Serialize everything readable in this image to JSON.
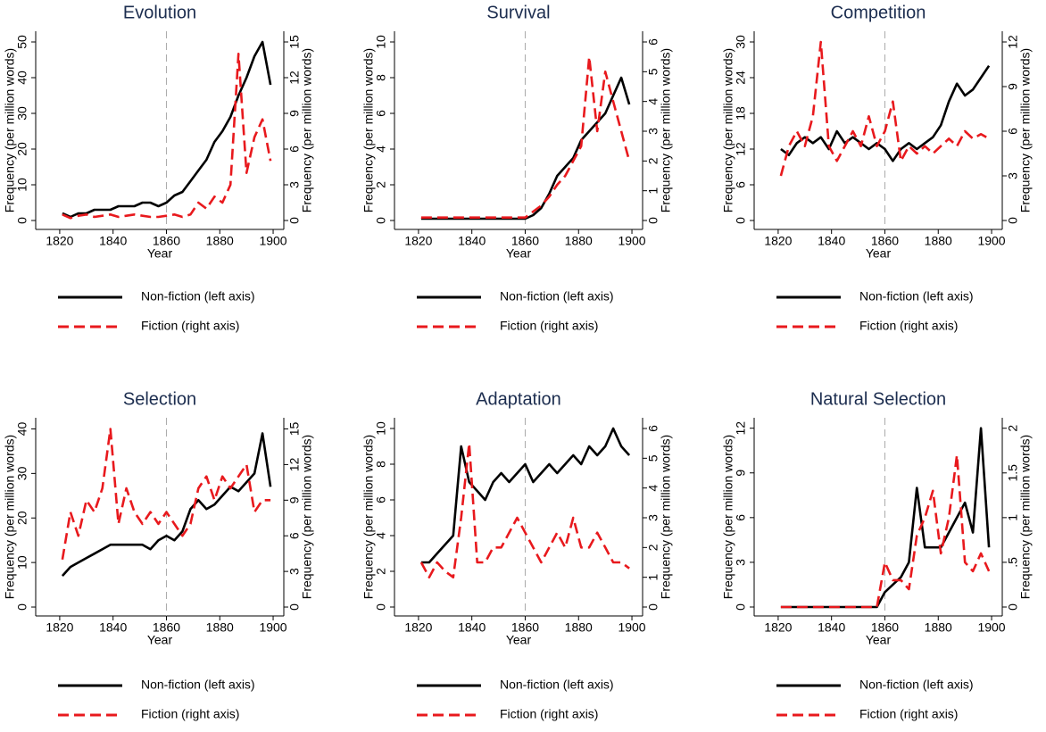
{
  "chart_data": [
    {
      "type": "line",
      "title": "Evolution",
      "xlabel": "Year",
      "ylabel": "Frequency (per million words)",
      "y2label": "Frequency (per million words)",
      "vline": 1860,
      "x": [
        1821,
        1824,
        1827,
        1830,
        1833,
        1836,
        1839,
        1842,
        1845,
        1848,
        1851,
        1854,
        1857,
        1860,
        1863,
        1866,
        1869,
        1872,
        1875,
        1878,
        1881,
        1884,
        1887,
        1890,
        1893,
        1896,
        1899
      ],
      "xlim": [
        1811,
        1904
      ],
      "xticks": [
        1820,
        1840,
        1860,
        1880,
        1900
      ],
      "ylim": [
        -2.5,
        53
      ],
      "yticks": [
        0,
        10,
        20,
        30,
        40,
        50
      ],
      "y2lim": [
        -0.75,
        15.9
      ],
      "y2ticks": [
        0,
        3,
        6,
        9,
        12,
        15
      ],
      "series": [
        {
          "name": "Non-fiction (left axis)",
          "color": "#000000",
          "axis": "y",
          "values": [
            2,
            1,
            2,
            2,
            3,
            3,
            3,
            4,
            4,
            4,
            5,
            5,
            4,
            5,
            7,
            8,
            11,
            14,
            17,
            22,
            25,
            29,
            35,
            40,
            46,
            50,
            38
          ]
        },
        {
          "name": "Fiction (right axis)",
          "color": "#e8191d",
          "axis": "y2",
          "values": [
            0.5,
            0.2,
            0.4,
            0.5,
            0.3,
            0.4,
            0.5,
            0.3,
            0.4,
            0.5,
            0.4,
            0.3,
            0.3,
            0.4,
            0.5,
            0.3,
            0.5,
            1.5,
            1,
            2,
            1.5,
            3,
            14,
            4,
            7,
            8.5,
            5
          ]
        }
      ]
    },
    {
      "type": "line",
      "title": "Survival",
      "xlabel": "Year",
      "ylabel": "Frequency (per million words)",
      "y2label": "Frequency (per million words)",
      "vline": 1860,
      "x": [
        1821,
        1824,
        1827,
        1830,
        1833,
        1836,
        1839,
        1842,
        1845,
        1848,
        1851,
        1854,
        1857,
        1860,
        1863,
        1866,
        1869,
        1872,
        1875,
        1878,
        1881,
        1884,
        1887,
        1890,
        1893,
        1896,
        1899
      ],
      "xlim": [
        1811,
        1904
      ],
      "xticks": [
        1820,
        1840,
        1860,
        1880,
        1900
      ],
      "ylim": [
        -0.5,
        10.6
      ],
      "yticks": [
        0,
        2,
        4,
        6,
        8,
        10
      ],
      "y2lim": [
        -0.3,
        6.36
      ],
      "y2ticks": [
        0,
        1,
        2,
        3,
        4,
        5,
        6
      ],
      "series": [
        {
          "name": "Non-fiction (left axis)",
          "color": "#000000",
          "axis": "y",
          "values": [
            0.1,
            0.1,
            0.1,
            0.1,
            0.1,
            0.1,
            0.1,
            0.1,
            0.1,
            0.1,
            0.1,
            0.1,
            0.1,
            0.1,
            0.3,
            0.7,
            1.5,
            2.5,
            3,
            3.5,
            4.5,
            5,
            5.5,
            6,
            7,
            8,
            6.5
          ]
        },
        {
          "name": "Fiction (right axis)",
          "color": "#e8191d",
          "axis": "y2",
          "values": [
            0.1,
            0.1,
            0.1,
            0.1,
            0.1,
            0.1,
            0.1,
            0.1,
            0.1,
            0.1,
            0.1,
            0.1,
            0.1,
            0.1,
            0.3,
            0.5,
            0.8,
            1.2,
            1.5,
            2,
            2.5,
            5.5,
            3,
            5,
            4,
            3,
            2
          ]
        }
      ]
    },
    {
      "type": "line",
      "title": "Competition",
      "xlabel": "Year",
      "ylabel": "Frequency (per million words)",
      "y2label": "Frequency (per million words)",
      "vline": 1860,
      "x": [
        1821,
        1824,
        1827,
        1830,
        1833,
        1836,
        1839,
        1842,
        1845,
        1848,
        1851,
        1854,
        1857,
        1860,
        1863,
        1866,
        1869,
        1872,
        1875,
        1878,
        1881,
        1884,
        1887,
        1890,
        1893,
        1896,
        1899
      ],
      "xlim": [
        1811,
        1904
      ],
      "xticks": [
        1820,
        1840,
        1860,
        1880,
        1900
      ],
      "ylim": [
        -1.5,
        31.8
      ],
      "yticks": [
        0,
        6,
        12,
        18,
        24,
        30
      ],
      "y2lim": [
        -0.6,
        12.72
      ],
      "y2ticks": [
        0,
        3,
        6,
        9,
        12
      ],
      "series": [
        {
          "name": "Non-fiction (left axis)",
          "color": "#000000",
          "axis": "y",
          "values": [
            12,
            11,
            13,
            14,
            13,
            14,
            12,
            15,
            13,
            14,
            13,
            12,
            13,
            12,
            10,
            12,
            13,
            12,
            13,
            14,
            16,
            20,
            23,
            21,
            22,
            24,
            26
          ]
        },
        {
          "name": "Fiction (right axis)",
          "color": "#e8191d",
          "axis": "y2",
          "values": [
            3,
            5,
            6,
            5,
            7,
            12,
            5,
            4,
            5,
            6,
            5,
            7,
            5,
            6,
            8,
            4,
            5,
            4.5,
            5,
            4.5,
            5,
            5.5,
            5,
            6,
            5.5,
            5.8,
            5.5
          ]
        }
      ]
    },
    {
      "type": "line",
      "title": "Selection",
      "xlabel": "Year",
      "ylabel": "Frequency (per million words)",
      "y2label": "Frequency (per million words)",
      "vline": 1860,
      "x": [
        1821,
        1824,
        1827,
        1830,
        1833,
        1836,
        1839,
        1842,
        1845,
        1848,
        1851,
        1854,
        1857,
        1860,
        1863,
        1866,
        1869,
        1872,
        1875,
        1878,
        1881,
        1884,
        1887,
        1890,
        1893,
        1896,
        1899
      ],
      "xlim": [
        1811,
        1904
      ],
      "xticks": [
        1820,
        1840,
        1860,
        1880,
        1900
      ],
      "ylim": [
        -2,
        42.5
      ],
      "yticks": [
        0,
        10,
        20,
        30,
        40
      ],
      "y2lim": [
        -0.75,
        15.94
      ],
      "y2ticks": [
        0,
        3,
        6,
        9,
        12,
        15
      ],
      "series": [
        {
          "name": "Non-fiction (left axis)",
          "color": "#000000",
          "axis": "y",
          "values": [
            7,
            9,
            10,
            11,
            12,
            13,
            14,
            14,
            14,
            14,
            14,
            13,
            15,
            16,
            15,
            17,
            22,
            24,
            22,
            23,
            25,
            27,
            26,
            28,
            30,
            39,
            27
          ]
        },
        {
          "name": "Fiction (right axis)",
          "color": "#e8191d",
          "axis": "y2",
          "values": [
            4,
            8,
            6,
            9,
            8,
            10,
            15,
            7,
            10,
            8,
            7,
            8,
            7,
            8,
            7,
            6,
            7,
            10,
            11,
            9,
            11,
            10,
            11,
            12,
            8,
            9,
            9
          ]
        }
      ]
    },
    {
      "type": "line",
      "title": "Adaptation",
      "xlabel": "Year",
      "ylabel": "Frequency (per million words)",
      "y2label": "Frequency (per million words)",
      "vline": 1860,
      "x": [
        1821,
        1824,
        1827,
        1830,
        1833,
        1836,
        1839,
        1842,
        1845,
        1848,
        1851,
        1854,
        1857,
        1860,
        1863,
        1866,
        1869,
        1872,
        1875,
        1878,
        1881,
        1884,
        1887,
        1890,
        1893,
        1896,
        1899
      ],
      "xlim": [
        1811,
        1904
      ],
      "xticks": [
        1820,
        1840,
        1860,
        1880,
        1900
      ],
      "ylim": [
        -0.5,
        10.6
      ],
      "yticks": [
        0,
        2,
        4,
        6,
        8,
        10
      ],
      "y2lim": [
        -0.3,
        6.36
      ],
      "y2ticks": [
        0,
        1,
        2,
        3,
        4,
        5,
        6
      ],
      "series": [
        {
          "name": "Non-fiction (left axis)",
          "color": "#000000",
          "axis": "y",
          "values": [
            2.5,
            2.5,
            3,
            3.5,
            4,
            9,
            7,
            6.5,
            6,
            7,
            7.5,
            7,
            7.5,
            8,
            7,
            7.5,
            8,
            7.5,
            8,
            8.5,
            8,
            9,
            8.5,
            9,
            10,
            9,
            8.5
          ]
        },
        {
          "name": "Fiction (right axis)",
          "color": "#e8191d",
          "axis": "y2",
          "values": [
            1.5,
            1,
            1.5,
            1.2,
            1,
            3,
            5.5,
            1.5,
            1.5,
            2,
            2,
            2.5,
            3,
            2.5,
            2,
            1.5,
            2,
            2.5,
            2,
            3,
            2,
            2,
            2.5,
            2,
            1.5,
            1.5,
            1.3
          ]
        }
      ]
    },
    {
      "type": "line",
      "title": "Natural Selection",
      "xlabel": "Year",
      "ylabel": "Frequency (per million words)",
      "y2label": "Frequency (per million words)",
      "vline": 1860,
      "x": [
        1821,
        1824,
        1827,
        1830,
        1833,
        1836,
        1839,
        1842,
        1845,
        1848,
        1851,
        1854,
        1857,
        1860,
        1863,
        1866,
        1869,
        1872,
        1875,
        1878,
        1881,
        1884,
        1887,
        1890,
        1893,
        1896,
        1899
      ],
      "xlim": [
        1811,
        1904
      ],
      "xticks": [
        1820,
        1840,
        1860,
        1880,
        1900
      ],
      "ylim": [
        -0.6,
        12.7
      ],
      "yticks": [
        0,
        3,
        6,
        9,
        12
      ],
      "y2lim": [
        -0.1,
        2.117
      ],
      "y2ticks": [
        0,
        {
          "value": 0.5,
          "label": ".5"
        },
        1,
        1.5,
        2
      ],
      "series": [
        {
          "name": "Non-fiction (left axis)",
          "color": "#000000",
          "axis": "y",
          "values": [
            0,
            0,
            0,
            0,
            0,
            0,
            0,
            0,
            0,
            0,
            0,
            0,
            0,
            1,
            1.5,
            2,
            3,
            8,
            4,
            4,
            4,
            5,
            6,
            7,
            5,
            12,
            4
          ]
        },
        {
          "name": "Fiction (right axis)",
          "color": "#e8191d",
          "axis": "y2",
          "values": [
            0,
            0,
            0,
            0,
            0,
            0,
            0,
            0,
            0,
            0,
            0,
            0,
            0,
            0.5,
            0.3,
            0.3,
            0.2,
            0.8,
            1,
            1.3,
            0.6,
            1,
            1.7,
            0.5,
            0.4,
            0.6,
            0.4
          ]
        }
      ]
    }
  ]
}
